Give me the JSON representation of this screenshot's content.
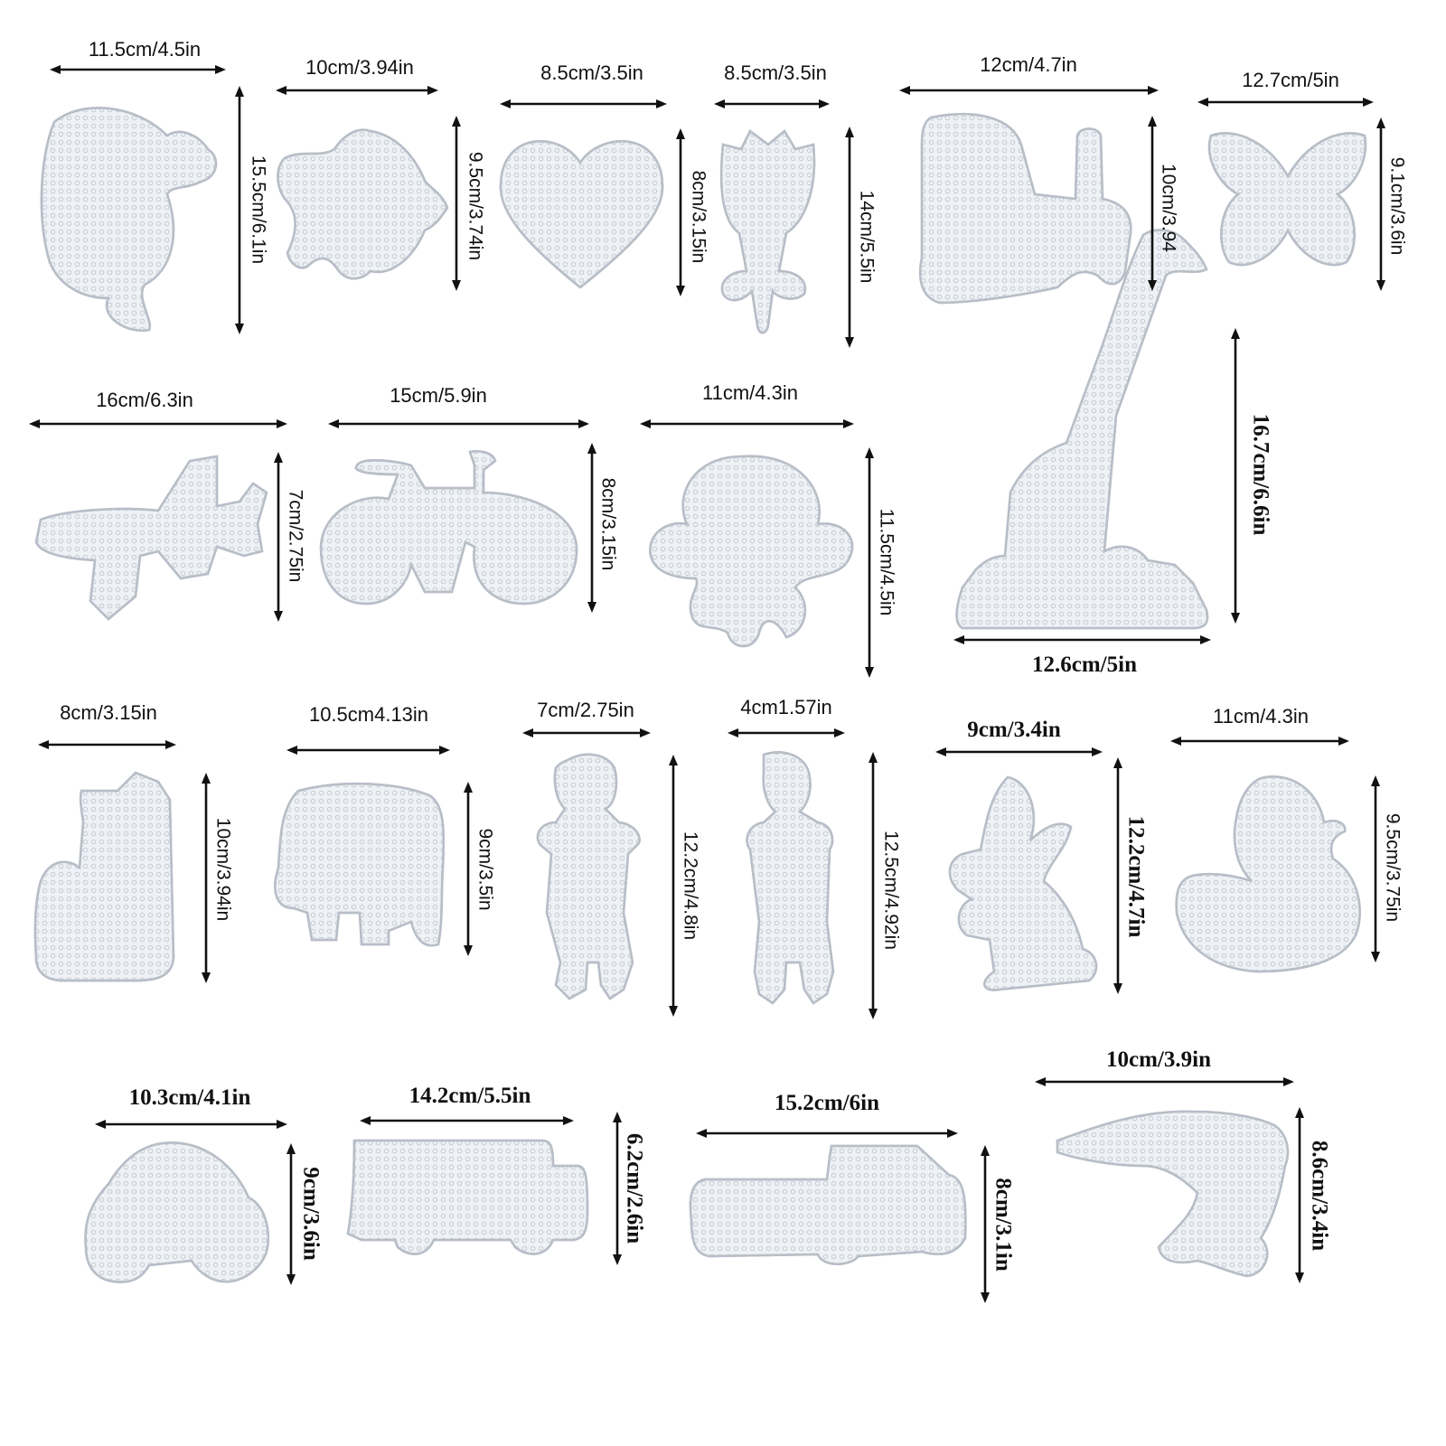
{
  "colors": {
    "board_fill": "#eef1f5",
    "board_outline": "#b8bec8",
    "arrow": "#111111"
  },
  "boards": [
    {
      "shape": "squirrel",
      "icon": "squirrel-board-icon",
      "width_label": "11.5cm/4.5in",
      "height_label": "15.5cm/6.1in"
    },
    {
      "shape": "fish",
      "icon": "fish-board-icon",
      "width_label": "10cm/3.94in",
      "height_label": "9.5cm/3.74in"
    },
    {
      "shape": "heart",
      "icon": "heart-board-icon",
      "width_label": "8.5cm/3.5in",
      "height_label": "8cm/3.15in"
    },
    {
      "shape": "tulip",
      "icon": "tulip-board-icon",
      "width_label": "8.5cm/3.5in",
      "height_label": "14cm/5.5in"
    },
    {
      "shape": "tractor",
      "icon": "tractor-board-icon",
      "width_label": "12cm/4.7in",
      "height_label": "10cm/3.94"
    },
    {
      "shape": "butterfly",
      "icon": "butterfly-board-icon",
      "width_label": "12.7cm/5in",
      "height_label": "9.1cm/3.6in"
    },
    {
      "shape": "airplane",
      "icon": "airplane-board-icon",
      "width_label": "16cm/6.3in",
      "height_label": "7cm/2.75in"
    },
    {
      "shape": "bicycle",
      "icon": "bicycle-board-icon",
      "width_label": "15cm/5.9in",
      "height_label": "8cm/3.15in"
    },
    {
      "shape": "octopus",
      "icon": "octopus-board-icon",
      "width_label": "11cm/4.3in",
      "height_label": "11.5cm/4.5in"
    },
    {
      "shape": "giraffe",
      "icon": "giraffe-board-icon",
      "width_label": "12.6cm/5in",
      "height_label": "16.7cm/6.6in"
    },
    {
      "shape": "cat",
      "icon": "cat-board-icon",
      "width_label": "8cm/3.15in",
      "height_label": "10cm/3.94in"
    },
    {
      "shape": "elephant",
      "icon": "elephant-board-icon",
      "width_label": "10.5cm4.13in",
      "height_label": "9cm/3.5in"
    },
    {
      "shape": "girl",
      "icon": "girl-board-icon",
      "width_label": "7cm/2.75in",
      "height_label": "12.2cm/4.8in"
    },
    {
      "shape": "boy",
      "icon": "boy-board-icon",
      "width_label": "4cm1.57in",
      "height_label": "12.5cm/4.92in"
    },
    {
      "shape": "rabbit",
      "icon": "rabbit-board-icon",
      "width_label": "9cm/3.4in",
      "height_label": "12.2cm/4.7in"
    },
    {
      "shape": "duck",
      "icon": "duck-board-icon",
      "width_label": "11cm/4.3in",
      "height_label": "9.5cm/3.75in"
    },
    {
      "shape": "car",
      "icon": "car-board-icon",
      "width_label": "10.3cm/4.1in",
      "height_label": "9cm/3.6in"
    },
    {
      "shape": "bus",
      "icon": "bus-board-icon",
      "width_label": "14.2cm/5.5in",
      "height_label": "6.2cm/2.6in"
    },
    {
      "shape": "truck",
      "icon": "truck-board-icon",
      "width_label": "15.2cm/6in",
      "height_label": "8cm/3.1in"
    },
    {
      "shape": "dolphin",
      "icon": "dolphin-board-icon",
      "width_label": "10cm/3.9in",
      "height_label": "8.6cm/3.4in"
    }
  ]
}
